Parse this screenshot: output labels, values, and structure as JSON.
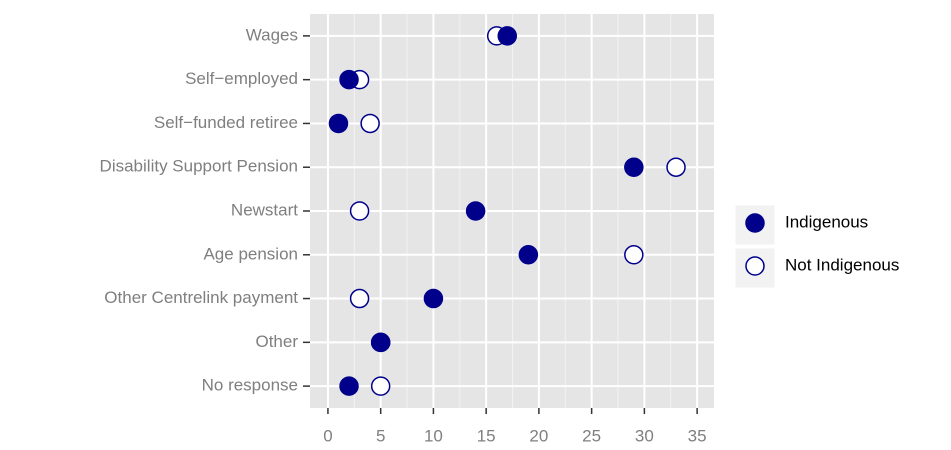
{
  "chart_data": {
    "type": "dot",
    "categories": [
      "Wages",
      "Self−employed",
      "Self−funded retiree",
      "Disability Support Pension",
      "Newstart",
      "Age pension",
      "Other Centrelink payment",
      "Other",
      "No response"
    ],
    "series": [
      {
        "name": "Indigenous",
        "color": "#00008b",
        "filled": true,
        "values": [
          17,
          2,
          1,
          29,
          14,
          19,
          10,
          5,
          2
        ]
      },
      {
        "name": "Not Indigenous",
        "color": "#00008b",
        "filled": false,
        "values": [
          16,
          3,
          4,
          33,
          3,
          29,
          3,
          5,
          5
        ]
      }
    ],
    "xlim": [
      -1.7,
      36.6
    ],
    "xticks": [
      0,
      5,
      10,
      15,
      20,
      25,
      30,
      35
    ],
    "grid": true,
    "legend": "right"
  }
}
